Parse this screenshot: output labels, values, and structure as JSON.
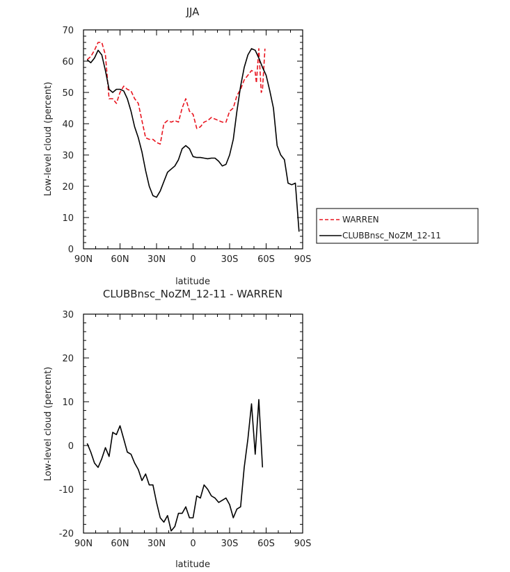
{
  "chart_data": [
    {
      "type": "line",
      "title": "JJA",
      "xlabel": "latitude",
      "ylabel": "Low-level cloud (percent)",
      "xlim": [
        -90,
        90
      ],
      "ylim": [
        0,
        70
      ],
      "xticks": [
        -90,
        -60,
        -30,
        0,
        30,
        60,
        90
      ],
      "xtick_labels": [
        "90N",
        "60N",
        "30N",
        "0",
        "30S",
        "60S",
        "90S"
      ],
      "yticks": [
        0,
        10,
        20,
        30,
        40,
        50,
        60,
        70
      ],
      "legend_position": "right",
      "series": [
        {
          "name": "WARREN",
          "color": "#e8141e",
          "dash": "dashed",
          "x": [
            -87,
            -84,
            -81,
            -78,
            -75,
            -72,
            -69,
            -66,
            -63,
            -60,
            -57,
            -54,
            -51,
            -48,
            -45,
            -42,
            -39,
            -36,
            -33,
            -30,
            -27,
            -24,
            -21,
            -18,
            -15,
            -12,
            -9,
            -6,
            -3,
            0,
            3,
            6,
            9,
            12,
            15,
            18,
            21,
            24,
            27,
            30,
            33,
            36,
            39,
            42,
            45,
            48,
            51,
            52,
            54,
            56,
            57,
            59
          ],
          "values": [
            60.5,
            61.5,
            63.5,
            66,
            66,
            62,
            48,
            48,
            46.5,
            50,
            52,
            51,
            50.5,
            48,
            46.5,
            41,
            35.5,
            35,
            35,
            34,
            33.5,
            40,
            41,
            40.5,
            41,
            40.5,
            45,
            48,
            44,
            43,
            38.5,
            39,
            40.5,
            41,
            42,
            41.5,
            41,
            40.5,
            40.5,
            44,
            45,
            49,
            51,
            54,
            55.5,
            57,
            56.5,
            53,
            64,
            50,
            51,
            64
          ]
        },
        {
          "name": "CLUBBnsc_NoZM_12-11",
          "color": "#000000",
          "dash": "solid",
          "x": [
            -87,
            -84,
            -81,
            -78,
            -75,
            -72,
            -69,
            -66,
            -63,
            -60,
            -57,
            -54,
            -51,
            -48,
            -45,
            -42,
            -39,
            -36,
            -33,
            -30,
            -27,
            -24,
            -21,
            -18,
            -15,
            -12,
            -9,
            -6,
            -3,
            0,
            3,
            6,
            9,
            12,
            15,
            18,
            21,
            24,
            27,
            30,
            33,
            36,
            39,
            42,
            45,
            48,
            51,
            54,
            57,
            60,
            63,
            66,
            69,
            72,
            75,
            78,
            81,
            84,
            87
          ],
          "values": [
            60.5,
            59.5,
            61,
            63.5,
            62,
            57,
            51,
            50,
            51,
            51,
            50.5,
            48,
            44,
            39,
            35.5,
            31,
            25,
            20,
            17,
            16.5,
            18.5,
            21.5,
            24.5,
            25.5,
            26.5,
            28.5,
            32,
            33,
            32,
            29.5,
            29.2,
            29.2,
            29,
            28.8,
            29,
            29,
            28,
            26.5,
            27,
            30,
            35,
            44,
            52,
            58,
            62,
            64,
            63.5,
            61,
            58,
            55.5,
            50.5,
            45,
            33,
            30,
            28.5,
            21,
            20.5,
            21,
            5.5
          ]
        }
      ]
    },
    {
      "type": "line",
      "title": "CLUBBnsc_NoZM_12-11 - WARREN",
      "xlabel": "latitude",
      "ylabel": "Low-level cloud (percent)",
      "xlim": [
        -90,
        90
      ],
      "ylim": [
        -20,
        30
      ],
      "xticks": [
        -90,
        -60,
        -30,
        0,
        30,
        60,
        90
      ],
      "xtick_labels": [
        "90N",
        "60N",
        "30N",
        "0",
        "30S",
        "60S",
        "90S"
      ],
      "yticks": [
        -20,
        -10,
        0,
        10,
        20,
        30
      ],
      "series": [
        {
          "color": "#000000",
          "dash": "solid",
          "x": [
            -87,
            -84,
            -81,
            -78,
            -75,
            -72,
            -69,
            -66,
            -63,
            -60,
            -57,
            -54,
            -51,
            -48,
            -45,
            -42,
            -39,
            -36,
            -33,
            -30,
            -27,
            -24,
            -21,
            -18,
            -15,
            -12,
            -9,
            -6,
            -3,
            0,
            3,
            6,
            9,
            12,
            15,
            18,
            21,
            24,
            27,
            30,
            33,
            36,
            39,
            42,
            45,
            48,
            51,
            54,
            57
          ],
          "values": [
            0.5,
            -1.5,
            -4,
            -5,
            -3,
            -0.5,
            -2.5,
            3,
            2.5,
            4.5,
            1.5,
            -1.5,
            -2,
            -4,
            -5.5,
            -8,
            -6.5,
            -9,
            -9,
            -13,
            -16.5,
            -17.5,
            -16,
            -19.5,
            -18.5,
            -15.5,
            -15.5,
            -14,
            -16.5,
            -16.5,
            -11.5,
            -12,
            -9,
            -10,
            -11.5,
            -12,
            -13,
            -12.5,
            -12,
            -13.5,
            -16.5,
            -14.5,
            -14,
            -5,
            1.5,
            9.5,
            -2,
            10.5,
            -5
          ]
        }
      ]
    }
  ]
}
